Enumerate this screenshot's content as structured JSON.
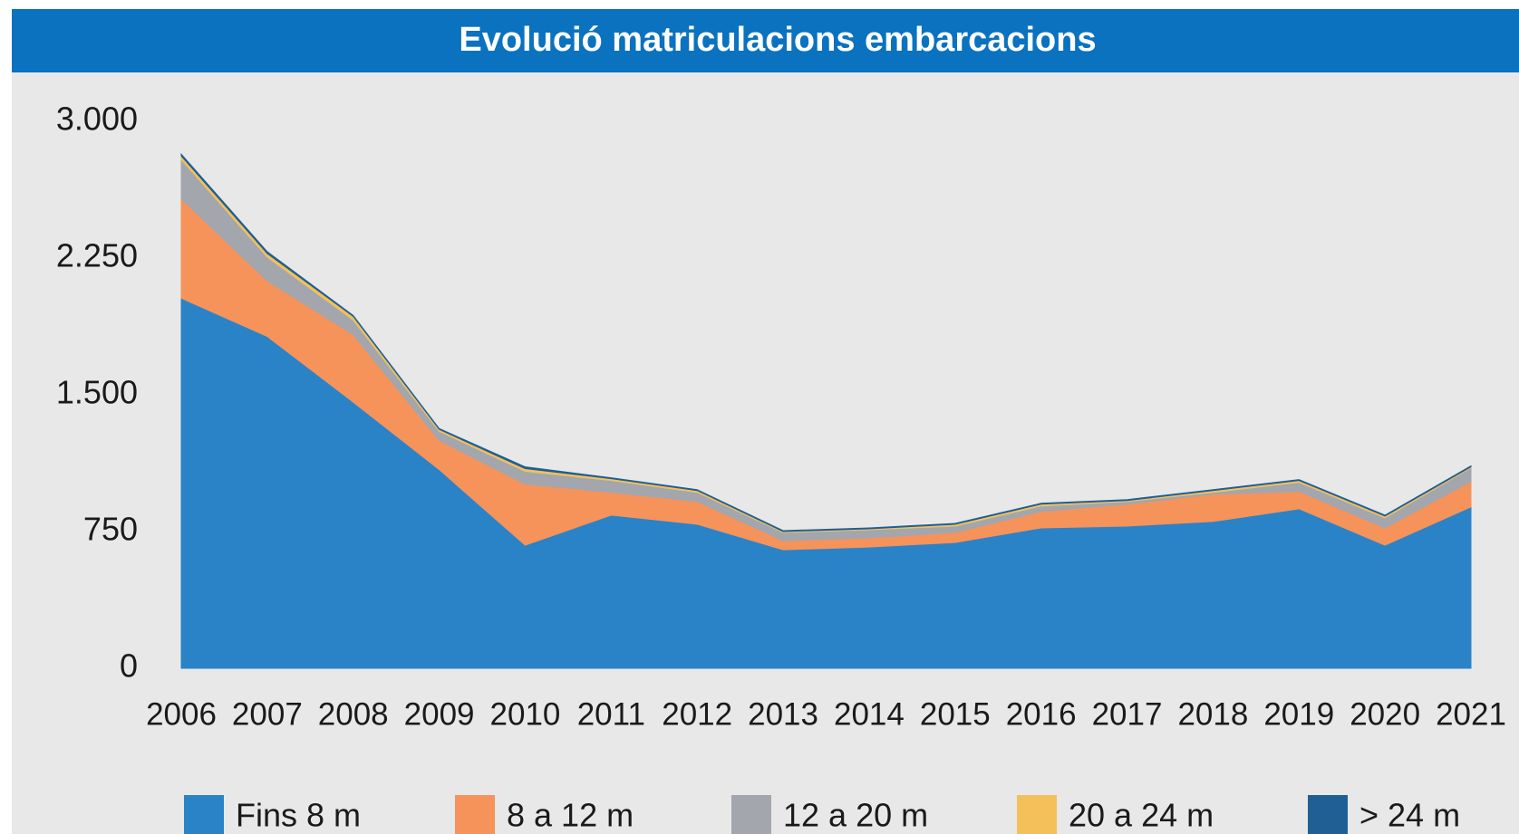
{
  "chart_data": {
    "type": "stacked_area",
    "title": "Evolució matriculacions embarcacions",
    "categories": [
      "2006",
      "2007",
      "2008",
      "2009",
      "2010",
      "2011",
      "2012",
      "2013",
      "2014",
      "2015",
      "2016",
      "2017",
      "2018",
      "2019",
      "2020",
      "2021"
    ],
    "series": [
      {
        "name": "Fins 8 m",
        "color": "#2a83c7",
        "values": [
          2030,
          1820,
          1460,
          1090,
          675,
          840,
          790,
          650,
          665,
          690,
          770,
          780,
          805,
          875,
          675,
          885
        ]
      },
      {
        "name": "8 a 12 m",
        "color": "#f5935b",
        "values": [
          545,
          305,
          370,
          160,
          335,
          125,
          125,
          50,
          50,
          55,
          90,
          120,
          150,
          95,
          95,
          140
        ]
      },
      {
        "name": "12 a 20 m",
        "color": "#a3a6ad",
        "values": [
          215,
          130,
          80,
          50,
          70,
          65,
          50,
          45,
          45,
          35,
          30,
          15,
          10,
          50,
          55,
          75
        ]
      },
      {
        "name": "20 a 24 m",
        "color": "#f3c05a",
        "values": [
          20,
          20,
          20,
          10,
          15,
          10,
          10,
          5,
          5,
          10,
          10,
          5,
          10,
          10,
          10,
          5
        ]
      },
      {
        "name": "> 24 m",
        "color": "#1f5f94",
        "values": [
          10,
          10,
          5,
          5,
          10,
          5,
          5,
          5,
          5,
          5,
          5,
          5,
          5,
          5,
          5,
          5
        ]
      }
    ],
    "ylim": [
      0,
      3000
    ],
    "yticks": [
      0,
      750,
      {
        "value": 1500,
        "label": "1.500"
      },
      {
        "value": 2250,
        "label": "2.250"
      },
      {
        "value": 3000,
        "label": "3.000"
      }
    ],
    "grid": false,
    "legend": "bottom"
  }
}
